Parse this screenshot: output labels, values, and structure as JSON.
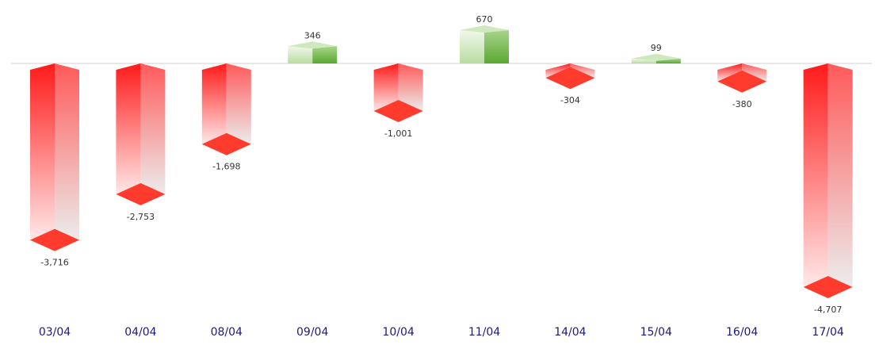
{
  "chart_data": {
    "type": "bar",
    "categories": [
      "03/04",
      "04/04",
      "08/04",
      "09/04",
      "10/04",
      "11/04",
      "14/04",
      "15/04",
      "16/04",
      "17/04"
    ],
    "values": [
      -3716,
      -2753,
      -1698,
      346,
      -1001,
      670,
      -304,
      99,
      -380,
      -4707
    ],
    "value_labels": [
      "-3,716",
      "-2,753",
      "-1,698",
      "346",
      "-1,001",
      "670",
      "-304",
      "99",
      "-380",
      "-4,707"
    ],
    "title": "",
    "xlabel": "",
    "ylabel": "",
    "ylim": [
      -4707,
      670
    ],
    "grid": false,
    "legend": "none",
    "colors": {
      "negative": "#ff1a1a",
      "negative_light": "#f0e6e6",
      "positive": "#5aa832",
      "positive_light": "#e6f2dc",
      "baseline": "#d0d0d0",
      "value_label": "#333333",
      "category_label": "#1a1a80"
    }
  }
}
